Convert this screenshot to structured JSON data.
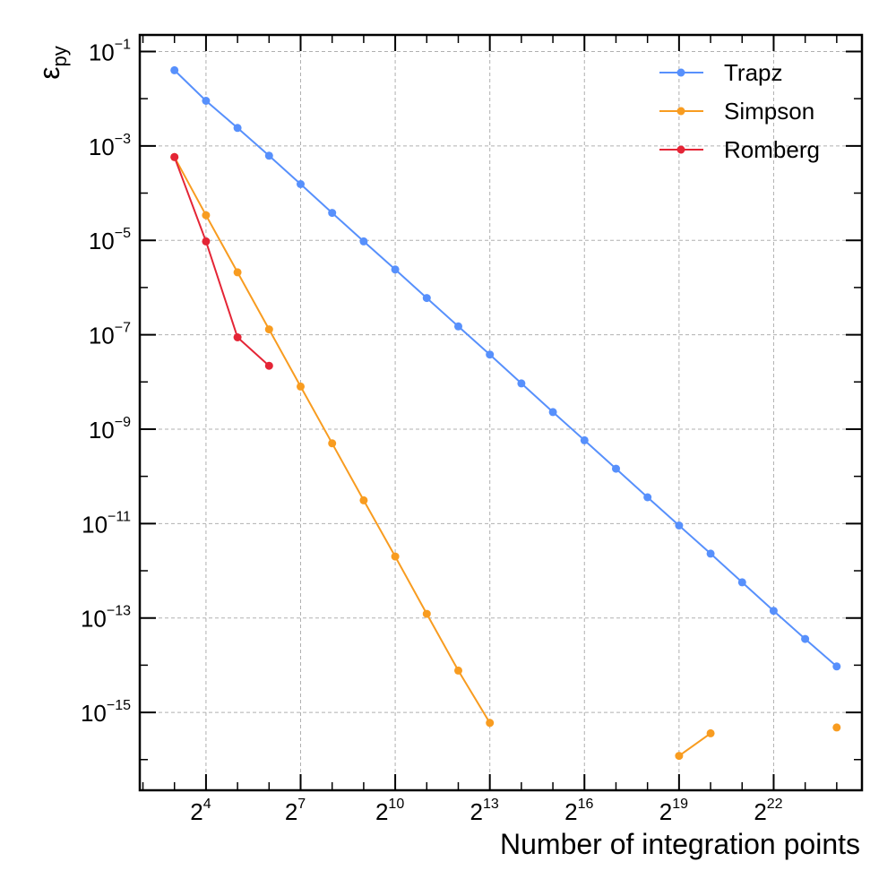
{
  "chart_data": {
    "type": "line",
    "xscale": "log2",
    "yscale": "log10",
    "xlabel": "Number of integration points",
    "ylabel": "ε",
    "ylabel_subscript": "py",
    "x_tick_base": "2",
    "x_tick_exponents": [
      "4",
      "7",
      "10",
      "13",
      "16",
      "19",
      "22"
    ],
    "y_tick_base": "10",
    "y_tick_exponents": [
      "−1",
      "−3",
      "−5",
      "−7",
      "−9",
      "−11",
      "−13",
      "−15"
    ],
    "xlim_log2": [
      1.9,
      24.8
    ],
    "ylim_log10": [
      -16.65,
      -0.65
    ],
    "grid": true,
    "legend_position": "top-right",
    "series": [
      {
        "name": "Trapz",
        "color": "#5790fc",
        "segments": [
          [
            [
              3,
              0.04
            ],
            [
              4,
              0.009
            ],
            [
              5,
              0.0024
            ],
            [
              6,
              0.00062
            ],
            [
              7,
              0.000155
            ],
            [
              8,
              3.8e-05
            ],
            [
              9,
              9.5e-06
            ],
            [
              10,
              2.4e-06
            ],
            [
              11,
              6e-07
            ],
            [
              12,
              1.5e-07
            ],
            [
              13,
              3.8e-08
            ],
            [
              14,
              9.3e-09
            ],
            [
              15,
              2.3e-09
            ],
            [
              16,
              5.8e-10
            ],
            [
              17,
              1.45e-10
            ],
            [
              18,
              3.6e-11
            ],
            [
              19,
              9.1e-12
            ],
            [
              20,
              2.3e-12
            ],
            [
              21,
              5.7e-13
            ],
            [
              22,
              1.42e-13
            ],
            [
              23,
              3.6e-14
            ],
            [
              24,
              9.4e-15
            ]
          ]
        ]
      },
      {
        "name": "Simpson",
        "color": "#f89c20",
        "segments": [
          [
            [
              3,
              0.00058
            ],
            [
              4,
              3.4e-05
            ],
            [
              5,
              2.1e-06
            ],
            [
              6,
              1.3e-07
            ],
            [
              7,
              8e-09
            ],
            [
              8,
              5e-10
            ],
            [
              9,
              3.1e-11
            ],
            [
              10,
              2e-12
            ],
            [
              11,
              1.22e-13
            ],
            [
              12,
              7.7e-15
            ],
            [
              13,
              6e-16
            ]
          ],
          [
            [
              19,
              1.2e-16
            ],
            [
              20,
              3.6e-16
            ]
          ],
          [
            [
              24,
              4.8e-16
            ]
          ]
        ]
      },
      {
        "name": "Romberg",
        "color": "#e42536",
        "segments": [
          [
            [
              3,
              0.00058
            ],
            [
              4,
              9.5e-06
            ],
            [
              5,
              8.8e-08
            ],
            [
              6,
              2.2e-08
            ]
          ]
        ]
      }
    ]
  }
}
